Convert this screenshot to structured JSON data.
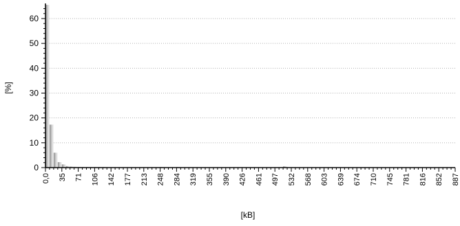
{
  "chart_data": {
    "type": "bar",
    "title": "",
    "xlabel": "[kB]",
    "ylabel": "[%]",
    "ylim": [
      0,
      65
    ],
    "y_ticks": [
      0,
      10,
      20,
      30,
      40,
      50,
      60
    ],
    "grid": "horizontal dotted",
    "legend": "none",
    "bin_width_kB": 8.87,
    "x_range_kB": [
      0,
      887
    ],
    "x_tick_labels": [
      "0,0",
      "35",
      "71",
      "106",
      "142",
      "177",
      "213",
      "248",
      "284",
      "319",
      "355",
      "390",
      "426",
      "461",
      "497",
      "532",
      "568",
      "603",
      "639",
      "674",
      "710",
      "745",
      "781",
      "816",
      "852",
      "887"
    ],
    "bins": [
      {
        "x": 0,
        "value": 65.5
      },
      {
        "x": 8.87,
        "value": 17.3
      },
      {
        "x": 17.74,
        "value": 6.0
      },
      {
        "x": 26.61,
        "value": 2.2
      },
      {
        "x": 35.48,
        "value": 1.3
      },
      {
        "x": 44.35,
        "value": 0.6
      },
      {
        "x": 53.22,
        "value": 0.4
      },
      {
        "x": 62.09,
        "value": 0.3
      },
      {
        "x": 70.96,
        "value": 0.25
      },
      {
        "x": 79.83,
        "value": 0.2
      },
      {
        "x": 88.7,
        "value": 0.2
      },
      {
        "x": 97.57,
        "value": 0.15
      },
      {
        "x": 106.44,
        "value": 0.1
      },
      {
        "x": 115.31,
        "value": 0.1
      },
      {
        "x": 124.18,
        "value": 0.1
      },
      {
        "x": 248.36,
        "value": 0.15
      },
      {
        "x": 283.84,
        "value": 0.1
      },
      {
        "x": 514.46,
        "value": 0.5
      }
    ],
    "colors": {
      "bar_light": "#f2f2f2",
      "bar_dark": "#8c8c8c",
      "grid": "#b0b0b0",
      "axis": "#000000"
    }
  }
}
